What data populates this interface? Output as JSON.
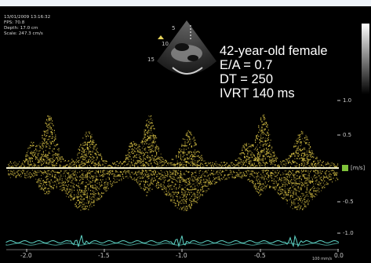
{
  "header": {
    "datetime": "13/01/2009 13:16:32",
    "fps": "FPS: 70.8",
    "depth": "Depth: 17.0 cm",
    "scale": "Scale: 247.3 cm/s"
  },
  "annotation": {
    "line1": "42-year-old female",
    "line2": "E/A = 0.7",
    "line3": "DT = 250",
    "line4": "IVRT 140 ms"
  },
  "thumbnail": {
    "marker_5": "5",
    "marker_10": "10",
    "marker_15": "15"
  },
  "velocity_axis": {
    "unit": "[m/s]",
    "ticks": [
      "1.0",
      "0.5",
      "-0.5",
      "-1.0"
    ]
  },
  "time_axis": {
    "ticks": [
      "-2.0",
      "-1.5",
      "-1.0",
      "-0.5",
      "0.0"
    ],
    "sweep": "100 mm/s"
  },
  "colors": {
    "doppler": "#e8d04a",
    "baseline": "#f4f1d0",
    "ecg": "#5fd6c8",
    "unit_marker": "#7fc23a"
  }
}
